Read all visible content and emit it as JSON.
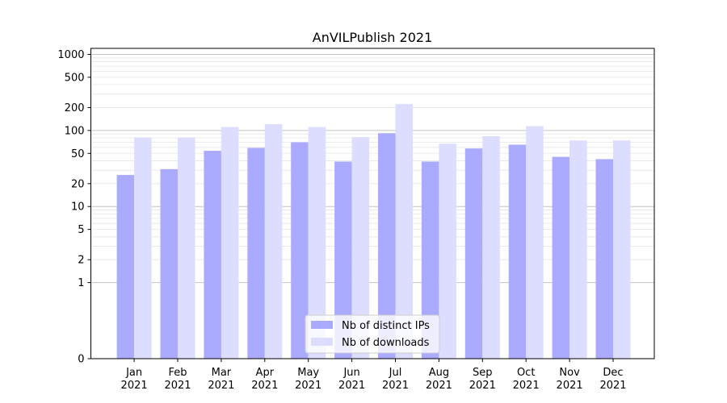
{
  "chart_data": {
    "type": "bar",
    "title": "AnVILPublish 2021",
    "xlabel": "",
    "ylabel": "",
    "yscale": "symlog",
    "ylim": [
      0,
      1200
    ],
    "yticks": [
      0,
      1,
      2,
      5,
      10,
      20,
      50,
      100,
      200,
      500,
      1000
    ],
    "grid": "horizontal",
    "legend_position": "bottom-center",
    "categories": [
      {
        "month": "Jan",
        "year": "2021"
      },
      {
        "month": "Feb",
        "year": "2021"
      },
      {
        "month": "Mar",
        "year": "2021"
      },
      {
        "month": "Apr",
        "year": "2021"
      },
      {
        "month": "May",
        "year": "2021"
      },
      {
        "month": "Jun",
        "year": "2021"
      },
      {
        "month": "Jul",
        "year": "2021"
      },
      {
        "month": "Aug",
        "year": "2021"
      },
      {
        "month": "Sep",
        "year": "2021"
      },
      {
        "month": "Oct",
        "year": "2021"
      },
      {
        "month": "Nov",
        "year": "2021"
      },
      {
        "month": "Dec",
        "year": "2021"
      }
    ],
    "series": [
      {
        "name": "Nb of distinct IPs",
        "color": "#aaaaff",
        "values": [
          26,
          31,
          54,
          59,
          70,
          39,
          92,
          39,
          58,
          65,
          45,
          42
        ]
      },
      {
        "name": "Nb of downloads",
        "color": "#ddddff",
        "values": [
          81,
          81,
          111,
          121,
          111,
          82,
          223,
          67,
          84,
          114,
          74,
          74
        ]
      }
    ]
  }
}
